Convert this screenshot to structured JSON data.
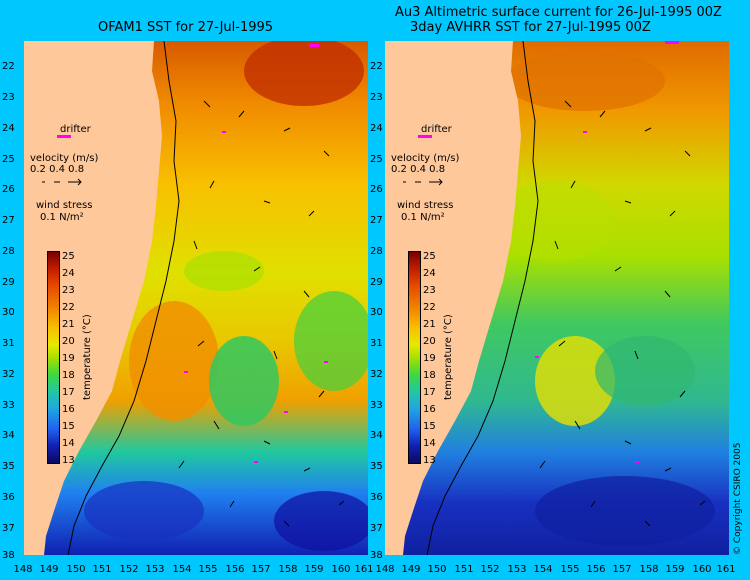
{
  "left_title": "OFAM1 SST for 27-Jul-1995",
  "right_title_line1": "Au3 Altimetric surface current for 26-Jul-1995 00Z",
  "right_title_line2": "3day AVHRR SST for 27-Jul-1995 00Z",
  "lat_labels": [
    "22",
    "23",
    "24",
    "25",
    "26",
    "27",
    "28",
    "29",
    "30",
    "31",
    "32",
    "33",
    "34",
    "35",
    "36",
    "37",
    "38"
  ],
  "lon_labels": [
    "148",
    "149",
    "150",
    "151",
    "152",
    "153",
    "154",
    "155",
    "156",
    "157",
    "158",
    "159",
    "160",
    "161"
  ],
  "legend": {
    "drifter": "drifter",
    "velocity_title": "velocity (m/s)",
    "velocity_values": "0.2 0.4 0.8",
    "wind_title": "wind stress",
    "wind_value": "0.1 N/m²",
    "colorbar_ticks": [
      "25",
      "24",
      "23",
      "22",
      "21",
      "20",
      "19",
      "18",
      "17",
      "16",
      "15",
      "14",
      "13"
    ],
    "colorbar_label": "temperature (°C)"
  },
  "copyright": "© Copyright CSIRO 2005",
  "colors": {
    "background": "#00c8ff",
    "land": "#ffc89a",
    "drifter": "#ff00ff"
  }
}
